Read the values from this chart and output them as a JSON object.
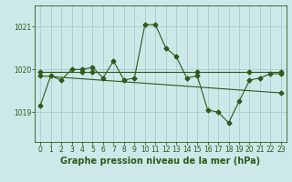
{
  "background_color": "#cce8e8",
  "grid_color": "#aacccc",
  "line_color": "#2d5a1b",
  "title": "Graphe pression niveau de la mer (hPa)",
  "xlim": [
    -0.5,
    23.5
  ],
  "ylim": [
    1018.3,
    1021.5
  ],
  "yticks": [
    1019,
    1020,
    1021
  ],
  "xticks": [
    0,
    1,
    2,
    3,
    4,
    5,
    6,
    7,
    8,
    9,
    10,
    11,
    12,
    13,
    14,
    15,
    16,
    17,
    18,
    19,
    20,
    21,
    22,
    23
  ],
  "series1_x": [
    0,
    1,
    2,
    3,
    4,
    5,
    6,
    7,
    8,
    9,
    10,
    11,
    12,
    13,
    14,
    15,
    16,
    17,
    18,
    19,
    20,
    21,
    22,
    23
  ],
  "series1_y": [
    1019.15,
    1019.85,
    1019.75,
    1020.0,
    1020.0,
    1020.05,
    1019.8,
    1020.2,
    1019.75,
    1019.8,
    1021.05,
    1021.05,
    1020.5,
    1020.3,
    1019.8,
    1019.85,
    1019.05,
    1019.0,
    1018.75,
    1019.25,
    1019.75,
    1019.8,
    1019.9,
    1019.9
  ],
  "series2_x": [
    0,
    4,
    5,
    15,
    20,
    23
  ],
  "series2_y": [
    1019.95,
    1019.95,
    1019.95,
    1019.95,
    1019.95,
    1019.95
  ],
  "series3_x": [
    0,
    23
  ],
  "series3_y": [
    1019.85,
    1019.45
  ],
  "title_fontsize": 7,
  "tick_fontsize": 5.5,
  "tick_color": "#2d5a1b",
  "marker_size": 2.5,
  "linewidth": 0.8
}
